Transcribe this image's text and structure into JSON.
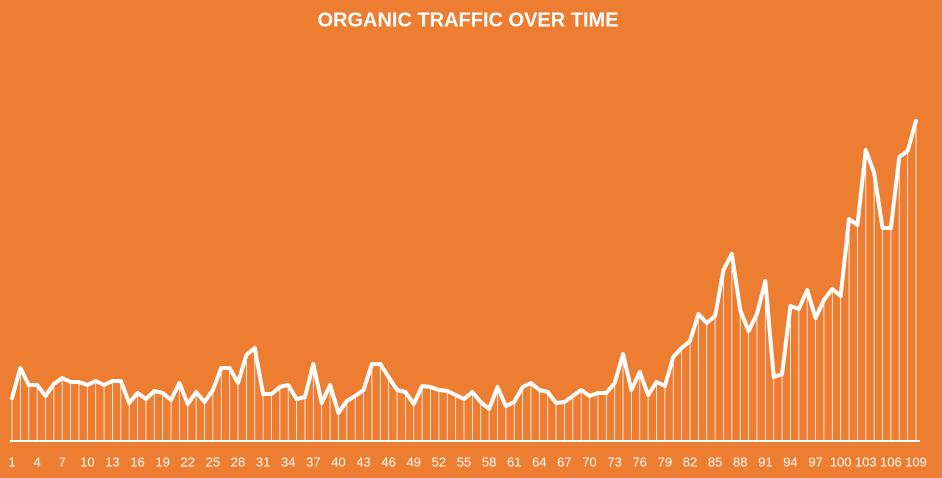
{
  "chart_data": {
    "type": "line",
    "title": "ORGANIC TRAFFIC OVER TIME",
    "categories": [
      "1",
      null,
      null,
      "4",
      null,
      null,
      "7",
      null,
      null,
      "10",
      null,
      null,
      "13",
      null,
      null,
      "16",
      null,
      null,
      "19",
      null,
      null,
      "22",
      null,
      null,
      "25",
      null,
      null,
      "28",
      null,
      null,
      "31",
      null,
      null,
      "34",
      null,
      null,
      "37",
      null,
      null,
      "40",
      null,
      null,
      "43",
      null,
      null,
      "46",
      null,
      null,
      "49",
      null,
      null,
      "52",
      null,
      null,
      "55",
      null,
      null,
      "58",
      null,
      null,
      "61",
      null,
      null,
      "64",
      null,
      null,
      "67",
      null,
      null,
      "70",
      null,
      null,
      "73",
      null,
      null,
      "76",
      null,
      null,
      "79",
      null,
      null,
      "82",
      null,
      null,
      "85",
      null,
      null,
      "88",
      null,
      null,
      "91",
      null,
      null,
      "94",
      null,
      null,
      "97",
      null,
      null,
      "100",
      null,
      null,
      "103",
      null,
      null,
      "106",
      null,
      null,
      "109"
    ],
    "values": [
      42,
      72,
      55,
      55,
      44,
      56,
      62,
      58,
      58,
      55,
      59,
      55,
      59,
      59,
      37,
      47,
      41,
      49,
      47,
      40,
      57,
      36,
      48,
      38,
      50,
      72,
      72,
      57,
      85,
      92,
      46,
      46,
      53,
      55,
      41,
      43,
      76,
      37,
      55,
      27,
      39,
      44,
      50,
      76,
      76,
      63,
      50,
      48,
      36,
      54,
      53,
      50,
      49,
      45,
      41,
      48,
      38,
      31,
      53,
      34,
      38,
      53,
      57,
      50,
      48,
      37,
      38,
      44,
      50,
      44,
      47,
      47,
      57,
      86,
      50,
      68,
      45,
      58,
      54,
      83,
      92,
      99,
      126,
      117,
      124,
      170,
      186,
      130,
      109,
      126,
      159,
      63,
      66,
      134,
      131,
      150,
      122,
      140,
      151,
      144,
      221,
      215,
      290,
      267,
      212,
      212,
      283,
      289,
      319
    ],
    "color": "#ffffff",
    "ylim": [
      0,
      400
    ]
  }
}
